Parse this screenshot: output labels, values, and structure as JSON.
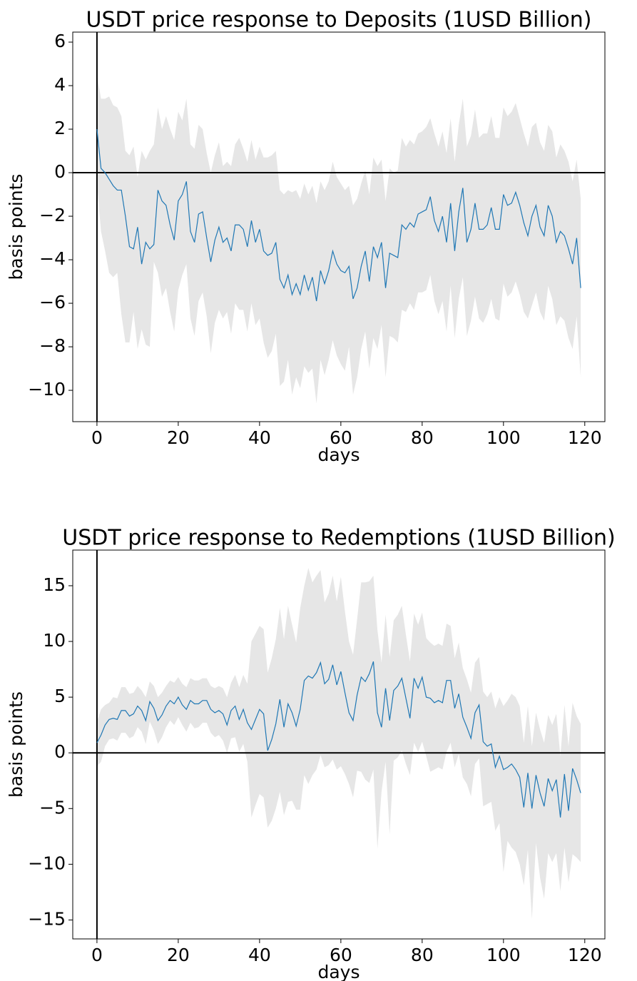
{
  "chart_data": [
    {
      "type": "band-line",
      "title": "USDT price response to Deposits (1USD Billion)",
      "xlabel": "days",
      "ylabel": "basis points",
      "line_color": "#1f77b4",
      "band_color": "#e6e6e6",
      "hline": 0,
      "vline": 0,
      "xlim": [
        -5.95,
        124.95
      ],
      "ylim": [
        -11.44,
        6.46
      ],
      "xticks": [
        0,
        20,
        40,
        60,
        80,
        100,
        120
      ],
      "yticks": [
        {
          "value": -10,
          "label": "−10"
        },
        {
          "value": -8,
          "label": "−8"
        },
        {
          "value": -6,
          "label": "−6"
        },
        {
          "value": -4,
          "label": "−4"
        },
        {
          "value": -2,
          "label": "−2"
        },
        0,
        2,
        4,
        6
      ],
      "x": [
        0,
        1,
        2,
        3,
        4,
        5,
        6,
        7,
        8,
        9,
        10,
        11,
        12,
        13,
        14,
        15,
        16,
        17,
        18,
        19,
        20,
        21,
        22,
        23,
        24,
        25,
        26,
        27,
        28,
        29,
        30,
        31,
        32,
        33,
        34,
        35,
        36,
        37,
        38,
        39,
        40,
        41,
        42,
        43,
        44,
        45,
        46,
        47,
        48,
        49,
        50,
        51,
        52,
        53,
        54,
        55,
        56,
        57,
        58,
        59,
        60,
        61,
        62,
        63,
        64,
        65,
        66,
        67,
        68,
        69,
        70,
        71,
        72,
        73,
        74,
        75,
        76,
        77,
        78,
        79,
        80,
        81,
        82,
        83,
        84,
        85,
        86,
        87,
        88,
        89,
        90,
        91,
        92,
        93,
        94,
        95,
        96,
        97,
        98,
        99,
        100,
        101,
        102,
        103,
        104,
        105,
        106,
        107,
        108,
        109,
        110,
        111,
        112,
        113,
        114,
        115,
        116,
        117,
        118,
        119
      ],
      "values": [
        2.0,
        0.2,
        0.0,
        -0.3,
        -0.6,
        -0.8,
        -0.8,
        -2.0,
        -3.4,
        -3.5,
        -2.5,
        -4.2,
        -3.2,
        -3.5,
        -3.3,
        -0.8,
        -1.3,
        -1.5,
        -2.4,
        -3.1,
        -1.3,
        -1.0,
        -0.4,
        -2.7,
        -3.2,
        -1.9,
        -1.8,
        -3.0,
        -4.1,
        -3.1,
        -2.5,
        -3.2,
        -3.0,
        -3.6,
        -2.4,
        -2.4,
        -2.6,
        -3.4,
        -2.2,
        -3.2,
        -2.6,
        -3.6,
        -3.8,
        -3.7,
        -3.2,
        -4.9,
        -5.3,
        -4.7,
        -5.6,
        -5.1,
        -5.6,
        -4.7,
        -5.4,
        -4.8,
        -5.9,
        -4.5,
        -5.1,
        -4.5,
        -3.6,
        -4.2,
        -4.5,
        -4.6,
        -4.3,
        -5.8,
        -5.3,
        -4.3,
        -3.6,
        -5.0,
        -3.4,
        -3.9,
        -3.2,
        -5.3,
        -3.7,
        -3.8,
        -3.9,
        -2.4,
        -2.6,
        -2.3,
        -2.5,
        -1.9,
        -1.8,
        -1.7,
        -1.1,
        -2.2,
        -2.7,
        -2.0,
        -3.2,
        -1.4,
        -3.6,
        -1.8,
        -0.7,
        -3.2,
        -2.6,
        -1.4,
        -2.6,
        -2.6,
        -2.4,
        -1.6,
        -2.6,
        -2.6,
        -1.0,
        -1.5,
        -1.4,
        -0.9,
        -1.5,
        -2.3,
        -2.9,
        -2.0,
        -1.5,
        -2.5,
        -2.9,
        -1.5,
        -2.0,
        -3.2,
        -2.7,
        -2.9,
        -3.5,
        -4.2,
        -3.0,
        -5.3
      ],
      "upper": [
        4.5,
        3.4,
        3.4,
        3.5,
        3.1,
        3.0,
        2.6,
        1.0,
        0.8,
        1.2,
        -0.2,
        1.0,
        0.6,
        1.0,
        1.3,
        3.0,
        2.0,
        2.6,
        2.0,
        1.5,
        2.8,
        2.4,
        3.4,
        1.3,
        1.1,
        2.2,
        2.0,
        0.9,
        0.0,
        0.8,
        1.4,
        0.3,
        0.5,
        0.3,
        1.3,
        1.6,
        1.1,
        0.5,
        1.5,
        0.6,
        1.2,
        0.7,
        0.7,
        0.8,
        1.0,
        -0.8,
        -1.0,
        -0.8,
        -0.9,
        -0.8,
        -1.2,
        -0.5,
        -1.0,
        -0.6,
        -1.4,
        -0.4,
        -0.8,
        -0.4,
        0.5,
        -0.2,
        -0.5,
        -0.8,
        -0.6,
        -1.5,
        -1.2,
        -0.5,
        0.1,
        -1.0,
        0.7,
        0.3,
        0.6,
        -1.3,
        0.2,
        0.0,
        0.1,
        1.6,
        1.2,
        1.5,
        1.3,
        1.8,
        1.9,
        2.1,
        2.5,
        1.8,
        1.2,
        1.9,
        0.9,
        2.5,
        0.5,
        2.2,
        3.4,
        1.2,
        1.7,
        2.9,
        1.6,
        1.8,
        1.8,
        2.6,
        1.6,
        1.6,
        3.0,
        2.6,
        2.8,
        3.2,
        2.5,
        1.8,
        1.2,
        2.1,
        2.3,
        1.4,
        1.0,
        2.2,
        1.9,
        0.7,
        1.3,
        1.0,
        0.5,
        -0.4,
        0.6,
        -1.2
      ],
      "lower": [
        -0.5,
        -2.7,
        -3.6,
        -4.6,
        -4.8,
        -4.6,
        -6.5,
        -7.8,
        -7.8,
        -6.4,
        -8.1,
        -7.2,
        -7.9,
        -8.0,
        -4.1,
        -4.6,
        -5.7,
        -5.3,
        -6.4,
        -7.3,
        -5.4,
        -4.7,
        -4.2,
        -6.7,
        -7.5,
        -5.9,
        -5.5,
        -6.6,
        -8.3,
        -6.9,
        -6.3,
        -6.7,
        -6.4,
        -7.4,
        -6.0,
        -6.3,
        -6.3,
        -7.3,
        -6.0,
        -7.0,
        -6.7,
        -7.8,
        -8.5,
        -8.2,
        -7.4,
        -9.8,
        -9.6,
        -8.6,
        -10.2,
        -9.4,
        -9.9,
        -8.9,
        -9.2,
        -9.0,
        -10.6,
        -8.6,
        -9.3,
        -8.6,
        -7.7,
        -8.4,
        -8.8,
        -9.1,
        -8.0,
        -10.2,
        -9.4,
        -8.1,
        -7.3,
        -9.0,
        -7.6,
        -8.1,
        -7.0,
        -9.4,
        -7.5,
        -7.6,
        -7.8,
        -6.3,
        -6.4,
        -6.0,
        -6.3,
        -5.5,
        -5.5,
        -5.4,
        -4.7,
        -5.9,
        -6.5,
        -5.9,
        -7.3,
        -5.2,
        -7.6,
        -5.8,
        -4.8,
        -7.5,
        -6.8,
        -5.7,
        -6.7,
        -6.9,
        -6.5,
        -5.8,
        -6.7,
        -6.8,
        -5.1,
        -5.7,
        -5.5,
        -5.0,
        -5.6,
        -6.4,
        -6.7,
        -6.1,
        -5.5,
        -6.4,
        -6.8,
        -5.2,
        -5.8,
        -7.0,
        -6.6,
        -6.8,
        -7.6,
        -8.1,
        -6.6,
        -9.4
      ]
    },
    {
      "type": "band-line",
      "title": "USDT price response to Redemptions (1USD Billion)",
      "xlabel": "days",
      "ylabel": "basis points",
      "line_color": "#1f77b4",
      "band_color": "#e6e6e6",
      "hline": 0,
      "vline": 0,
      "xlim": [
        -5.95,
        124.95
      ],
      "ylim": [
        -16.7,
        18.2
      ],
      "xticks": [
        0,
        20,
        40,
        60,
        80,
        100,
        120
      ],
      "yticks": [
        {
          "value": -15,
          "label": "−15"
        },
        {
          "value": -10,
          "label": "−10"
        },
        {
          "value": -5,
          "label": "−5"
        },
        0,
        5,
        10,
        15
      ],
      "x": [
        0,
        1,
        2,
        3,
        4,
        5,
        6,
        7,
        8,
        9,
        10,
        11,
        12,
        13,
        14,
        15,
        16,
        17,
        18,
        19,
        20,
        21,
        22,
        23,
        24,
        25,
        26,
        27,
        28,
        29,
        30,
        31,
        32,
        33,
        34,
        35,
        36,
        37,
        38,
        39,
        40,
        41,
        42,
        43,
        44,
        45,
        46,
        47,
        48,
        49,
        50,
        51,
        52,
        53,
        54,
        55,
        56,
        57,
        58,
        59,
        60,
        61,
        62,
        63,
        64,
        65,
        66,
        67,
        68,
        69,
        70,
        71,
        72,
        73,
        74,
        75,
        76,
        77,
        78,
        79,
        80,
        81,
        82,
        83,
        84,
        85,
        86,
        87,
        88,
        89,
        90,
        91,
        92,
        93,
        94,
        95,
        96,
        97,
        98,
        99,
        100,
        101,
        102,
        103,
        104,
        105,
        106,
        107,
        108,
        109,
        110,
        111,
        112,
        113,
        114,
        115,
        116,
        117,
        118,
        119
      ],
      "values": [
        0.9,
        1.6,
        2.5,
        3.0,
        3.1,
        3.0,
        3.8,
        3.8,
        3.3,
        3.5,
        4.2,
        3.8,
        2.9,
        4.6,
        4.0,
        2.9,
        3.4,
        4.2,
        4.7,
        4.4,
        5.0,
        4.3,
        3.9,
        4.7,
        4.4,
        4.4,
        4.7,
        4.7,
        3.9,
        3.6,
        3.8,
        3.5,
        2.5,
        3.8,
        4.2,
        3.0,
        3.9,
        2.7,
        2.1,
        3.0,
        3.9,
        3.5,
        0.2,
        1.2,
        2.6,
        4.8,
        2.3,
        4.4,
        3.6,
        2.4,
        3.9,
        6.5,
        6.9,
        6.7,
        7.2,
        8.1,
        6.2,
        6.6,
        7.9,
        6.1,
        7.3,
        5.4,
        3.6,
        2.9,
        5.2,
        6.8,
        6.4,
        7.1,
        8.2,
        3.6,
        2.3,
        5.8,
        2.9,
        5.6,
        6.0,
        6.7,
        4.9,
        3.1,
        6.7,
        5.8,
        6.8,
        5.0,
        4.9,
        4.5,
        4.7,
        4.5,
        6.5,
        6.5,
        4.0,
        5.3,
        3.2,
        2.3,
        1.3,
        3.6,
        4.3,
        1.0,
        0.6,
        0.8,
        -1.3,
        -0.3,
        -1.5,
        -1.3,
        -1.0,
        -1.5,
        -2.2,
        -4.9,
        -1.8,
        -5.0,
        -2.0,
        -3.6,
        -4.8,
        -2.3,
        -3.4,
        -2.4,
        -5.8,
        -1.9,
        -5.2,
        -1.4,
        -2.4,
        -3.6
      ],
      "upper": [
        2.8,
        3.9,
        4.3,
        4.5,
        5.0,
        4.9,
        5.9,
        5.9,
        5.3,
        5.4,
        6.0,
        5.6,
        5.0,
        6.4,
        6.0,
        5.0,
        5.4,
        6.0,
        6.5,
        6.3,
        6.8,
        6.2,
        5.9,
        6.7,
        6.5,
        6.5,
        6.7,
        6.7,
        6.0,
        5.8,
        6.0,
        5.8,
        5.0,
        6.3,
        7.0,
        5.9,
        7.0,
        6.2,
        10.0,
        10.7,
        11.4,
        11.1,
        7.2,
        8.5,
        10.2,
        13.0,
        10.2,
        13.2,
        11.5,
        9.9,
        13.0,
        15.0,
        16.6,
        15.3,
        15.9,
        16.4,
        13.5,
        14.3,
        15.9,
        13.6,
        15.8,
        12.7,
        10.0,
        8.8,
        12.0,
        15.3,
        15.3,
        15.4,
        15.9,
        11.0,
        8.1,
        12.4,
        8.6,
        11.9,
        12.4,
        13.2,
        10.6,
        8.2,
        12.5,
        11.5,
        12.6,
        10.3,
        9.9,
        9.6,
        9.8,
        9.6,
        11.6,
        11.4,
        8.5,
        9.9,
        7.6,
        6.6,
        5.4,
        8.1,
        8.6,
        5.5,
        5.0,
        5.5,
        4.0,
        5.0,
        4.2,
        4.7,
        5.3,
        5.0,
        4.2,
        0.9,
        4.2,
        0.6,
        3.6,
        2.1,
        0.9,
        3.4,
        2.5,
        3.5,
        -0.3,
        4.3,
        0.6,
        4.5,
        3.3,
        2.6
      ],
      "lower": [
        -1.2,
        -0.8,
        0.6,
        1.2,
        1.3,
        1.1,
        1.8,
        1.8,
        1.3,
        1.5,
        2.3,
        1.9,
        0.8,
        2.8,
        2.0,
        0.8,
        1.4,
        2.3,
        2.9,
        2.5,
        3.2,
        2.5,
        1.9,
        2.7,
        2.2,
        2.3,
        2.7,
        2.7,
        1.8,
        1.4,
        1.6,
        1.1,
        0.0,
        1.3,
        1.4,
        0.1,
        0.8,
        -0.8,
        -5.8,
        -4.7,
        -3.7,
        -4.0,
        -6.7,
        -6.1,
        -5.0,
        -3.5,
        -5.6,
        -4.4,
        -4.3,
        -5.1,
        -5.1,
        -2.0,
        -2.8,
        -2.0,
        -1.5,
        -0.2,
        -1.3,
        -1.1,
        -0.6,
        -1.5,
        -1.2,
        -1.9,
        -2.8,
        -4.0,
        -1.6,
        -1.7,
        -2.4,
        -2.7,
        -1.5,
        -8.6,
        -3.5,
        -0.8,
        -7.3,
        -0.7,
        -0.4,
        0.2,
        -1.0,
        -2.0,
        0.9,
        0.1,
        1.0,
        -0.3,
        -1.7,
        -1.5,
        -1.3,
        -1.5,
        0.1,
        0.9,
        -1.3,
        -0.1,
        -2.2,
        -2.8,
        -3.9,
        -1.0,
        -0.5,
        -4.8,
        -4.6,
        -4.4,
        -7.0,
        -6.3,
        -10.7,
        -7.9,
        -8.5,
        -8.9,
        -10.0,
        -11.9,
        -8.7,
        -14.9,
        -8.1,
        -11.2,
        -13.1,
        -9.0,
        -9.8,
        -9.0,
        -12.4,
        -8.5,
        -11.6,
        -9.1,
        -9.4,
        -9.8
      ]
    }
  ]
}
